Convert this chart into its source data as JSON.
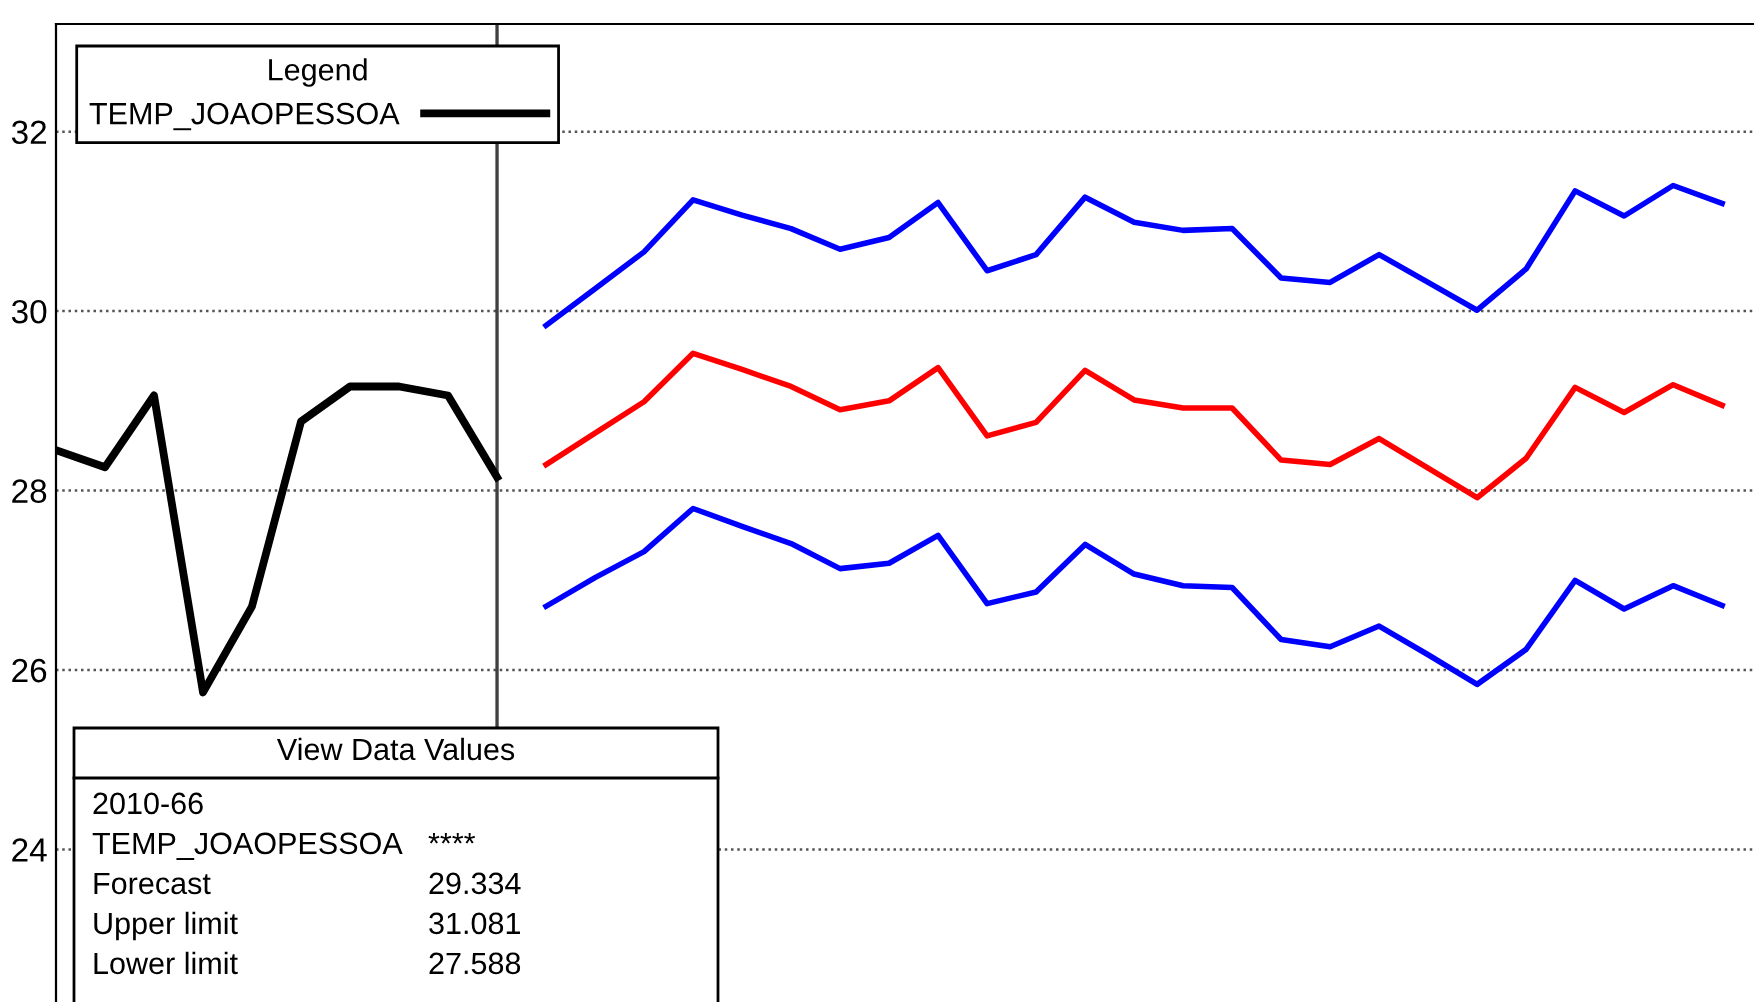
{
  "chart_data": {
    "type": "line",
    "categories": [
      null,
      null,
      null,
      null,
      null,
      null,
      null,
      null,
      null,
      null,
      null,
      null,
      null,
      null,
      null,
      null,
      null,
      null,
      null,
      null,
      null,
      null,
      null,
      null,
      null,
      null,
      null,
      null,
      null,
      null,
      null,
      null,
      null,
      null,
      null
    ],
    "series": [
      {
        "name": "TEMP_JOAOPESSOA",
        "color": "#000000",
        "values": [
          28.45,
          28.26,
          29.06,
          25.75,
          26.71,
          28.77,
          29.16,
          29.16,
          29.06,
          28.15,
          null,
          null,
          null,
          null,
          null,
          null,
          null,
          null,
          null,
          null,
          null,
          null,
          null,
          null,
          null,
          null,
          null,
          null,
          null,
          null,
          null,
          null,
          null,
          null,
          null
        ]
      },
      {
        "color": "#0000ff",
        "values": [
          null,
          null,
          null,
          null,
          null,
          null,
          null,
          null,
          null,
          null,
          29.84,
          30.25,
          30.66,
          31.24,
          31.07,
          30.92,
          30.69,
          30.82,
          31.21,
          30.45,
          30.63,
          31.27,
          30.99,
          30.9,
          30.92,
          30.37,
          30.32,
          30.63,
          30.32,
          30.01,
          30.47,
          31.34,
          31.06,
          31.4,
          31.2
        ]
      },
      {
        "color": "#ff0000",
        "values": [
          null,
          null,
          null,
          null,
          null,
          null,
          null,
          null,
          null,
          null,
          28.29,
          28.64,
          28.99,
          29.53,
          29.35,
          29.16,
          28.9,
          29.0,
          29.37,
          28.61,
          28.76,
          29.34,
          29.01,
          28.92,
          28.92,
          28.34,
          28.29,
          28.58,
          28.25,
          27.92,
          28.36,
          29.15,
          28.87,
          29.18,
          28.95
        ]
      },
      {
        "color": "#0000ff",
        "values": [
          null,
          null,
          null,
          null,
          null,
          null,
          null,
          null,
          null,
          null,
          26.71,
          27.03,
          27.32,
          27.8,
          27.6,
          27.41,
          27.13,
          27.19,
          27.5,
          26.74,
          26.87,
          27.4,
          27.07,
          26.94,
          26.92,
          26.34,
          26.26,
          26.49,
          26.17,
          25.84,
          26.23,
          27.0,
          26.68,
          26.94,
          26.72
        ]
      }
    ],
    "ylim": [
      22.3,
      33.2
    ],
    "yticks": [
      24,
      26,
      28,
      30,
      32
    ],
    "grid": "y",
    "legend": "top left",
    "legend_title": "Legend",
    "annotations": [
      "View Data Values",
      "2010-66",
      "TEMP_JOAOPESSOA",
      "****",
      "Forecast",
      "29.334",
      "Upper limit",
      "31.081",
      "Lower limit",
      "27.588"
    ],
    "tick_labels": "y"
  }
}
